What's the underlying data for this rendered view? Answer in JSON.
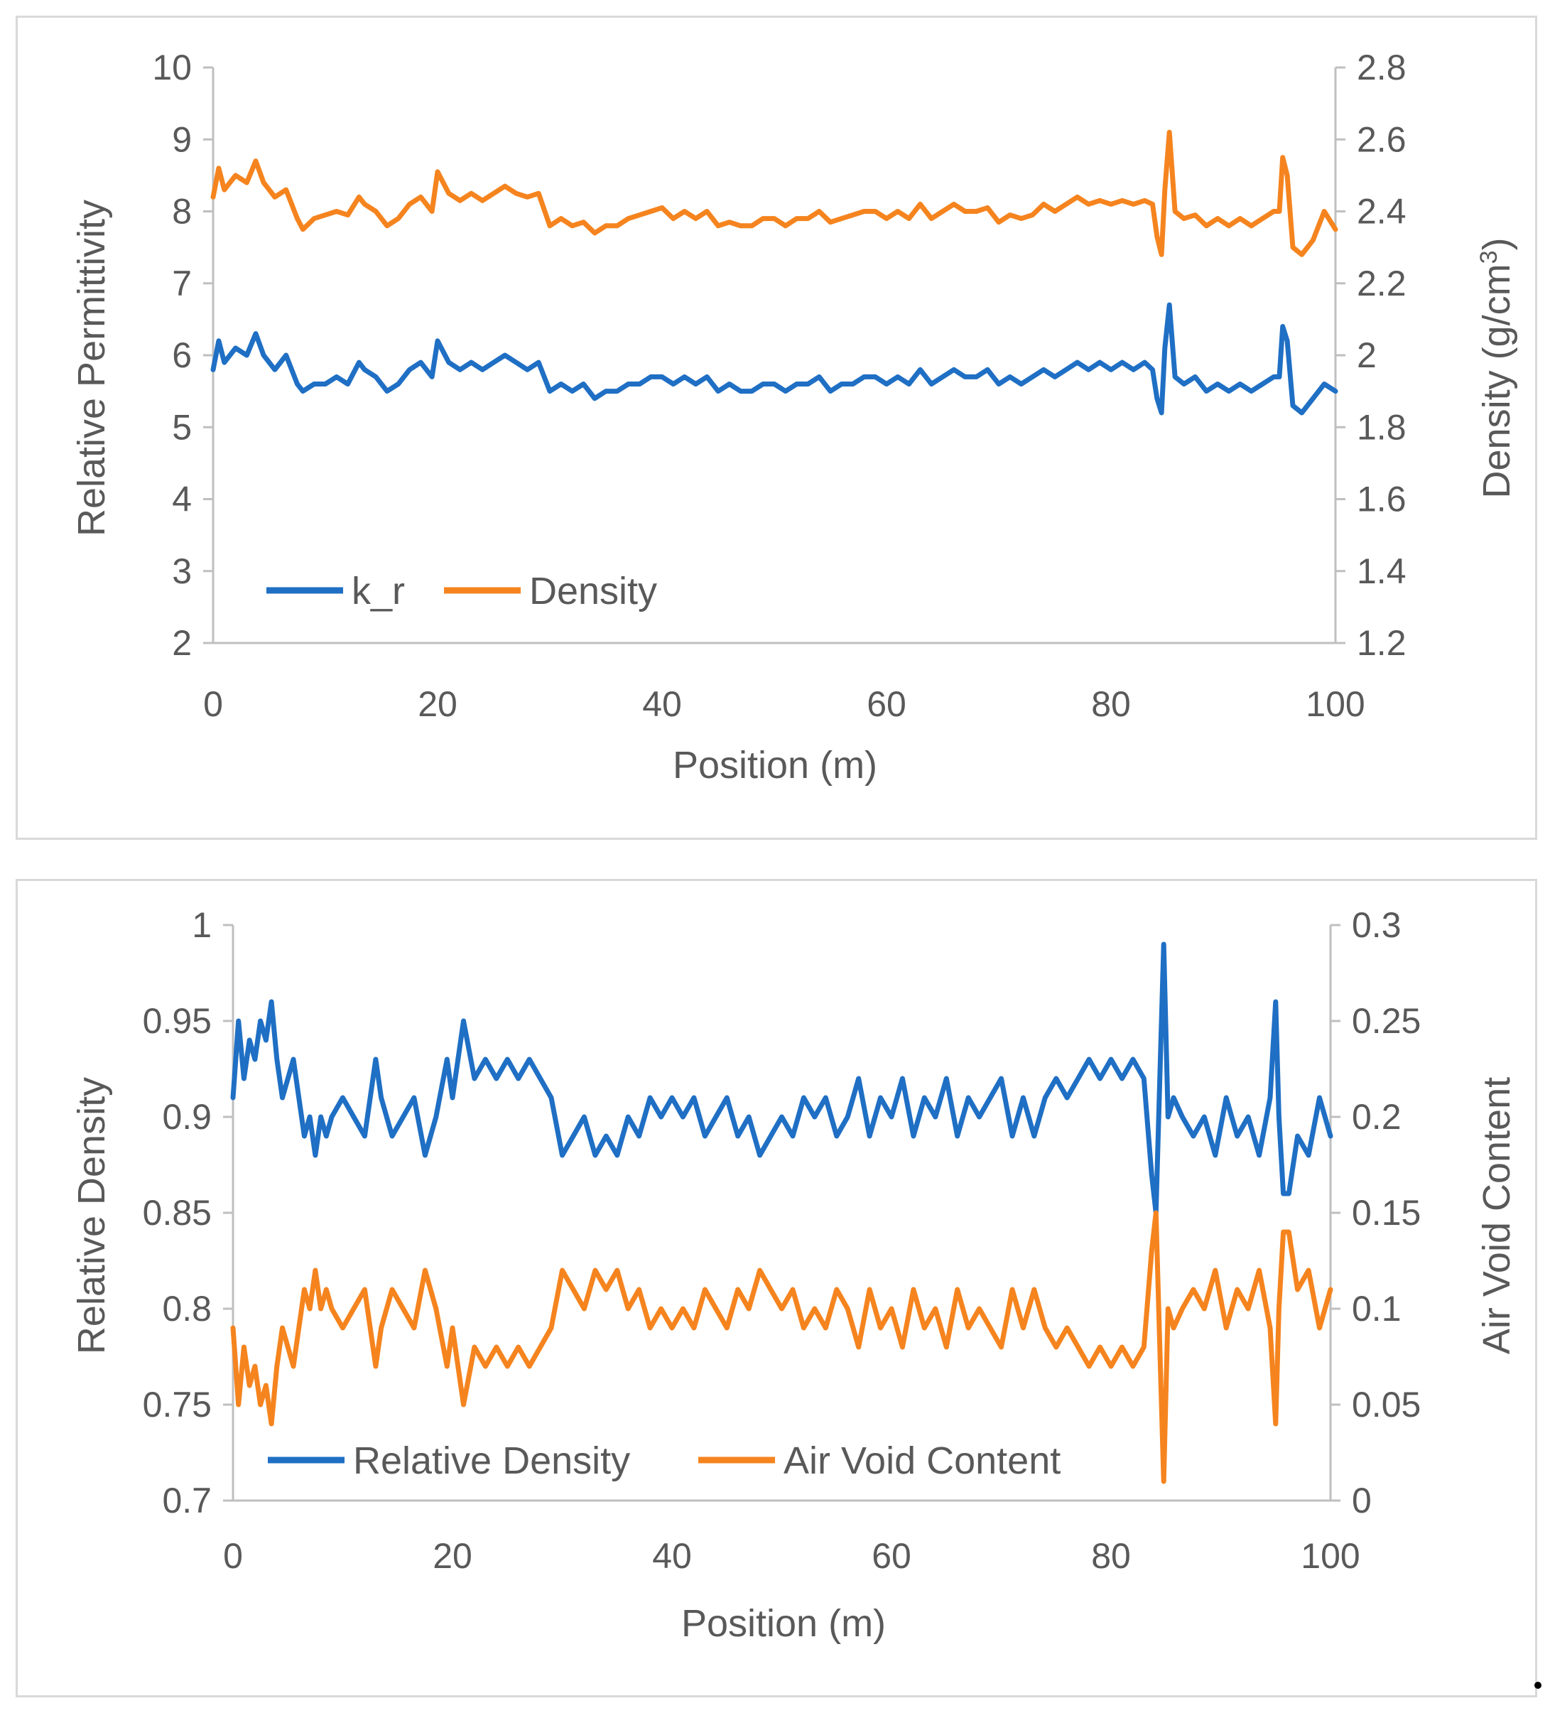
{
  "colors": {
    "series1": "#1f6fc4",
    "series2": "#f5841f",
    "axis": "#bfbfbf",
    "text": "#595959"
  },
  "chart_data": [
    {
      "type": "line",
      "xlabel": "Position (m)",
      "ylabel": "Relative Permittivity",
      "y2label": "Density (g/cm",
      "y2label_sup": "3",
      "y2label_close": ")",
      "xlim": [
        0,
        100
      ],
      "ylim": [
        2,
        10
      ],
      "y2lim": [
        1.2,
        2.8
      ],
      "xticks": [
        "0",
        "20",
        "40",
        "60",
        "80",
        "100"
      ],
      "yticks": [
        "2",
        "3",
        "4",
        "5",
        "6",
        "7",
        "8",
        "9",
        "10"
      ],
      "y2ticks": [
        "1.2",
        "1.4",
        "1.6",
        "1.8",
        "2",
        "2.2",
        "2.4",
        "2.6",
        "2.8"
      ],
      "legend_position": "lower-left",
      "series": [
        {
          "name": "k_r",
          "axis": "left",
          "color": "#1f6fc4",
          "x": [
            0,
            0.5,
            1,
            2,
            3,
            3.8,
            4.5,
            5.5,
            6.5,
            7.5,
            8,
            9,
            10,
            11,
            12,
            13,
            13.5,
            14.5,
            15.5,
            16.5,
            17.5,
            18.5,
            19.5,
            20,
            21,
            22,
            23,
            24,
            25,
            26,
            27,
            28,
            29,
            30,
            31,
            32,
            33,
            34,
            35,
            36,
            37,
            38,
            39,
            40,
            41,
            42,
            43,
            44,
            45,
            46,
            47,
            48,
            49,
            50,
            51,
            52,
            53,
            54,
            55,
            56,
            57,
            58,
            59,
            60,
            61,
            62,
            63,
            64,
            65,
            66,
            67,
            68,
            69,
            70,
            71,
            72,
            73,
            74,
            75,
            76,
            77,
            78,
            79,
            80,
            81,
            82,
            83,
            83.7,
            84.1,
            84.5,
            84.8,
            85.2,
            85.7,
            86.5,
            87.5,
            88.5,
            89.5,
            90.5,
            91.5,
            92.5,
            93.5,
            94.5,
            95,
            95.3,
            95.7,
            96.2,
            97,
            98,
            99,
            100
          ],
          "values": [
            5.8,
            6.2,
            5.9,
            6.1,
            6.0,
            6.3,
            6.0,
            5.8,
            6.0,
            5.6,
            5.5,
            5.6,
            5.6,
            5.7,
            5.6,
            5.9,
            5.8,
            5.7,
            5.5,
            5.6,
            5.8,
            5.9,
            5.7,
            6.2,
            5.9,
            5.8,
            5.9,
            5.8,
            5.9,
            6.0,
            5.9,
            5.8,
            5.9,
            5.5,
            5.6,
            5.5,
            5.6,
            5.4,
            5.5,
            5.5,
            5.6,
            5.6,
            5.7,
            5.7,
            5.6,
            5.7,
            5.6,
            5.7,
            5.5,
            5.6,
            5.5,
            5.5,
            5.6,
            5.6,
            5.5,
            5.6,
            5.6,
            5.7,
            5.5,
            5.6,
            5.6,
            5.7,
            5.7,
            5.6,
            5.7,
            5.6,
            5.8,
            5.6,
            5.7,
            5.8,
            5.7,
            5.7,
            5.8,
            5.6,
            5.7,
            5.6,
            5.7,
            5.8,
            5.7,
            5.8,
            5.9,
            5.8,
            5.9,
            5.8,
            5.9,
            5.8,
            5.9,
            5.8,
            5.4,
            5.2,
            6.1,
            6.7,
            5.7,
            5.6,
            5.7,
            5.5,
            5.6,
            5.5,
            5.6,
            5.5,
            5.6,
            5.7,
            5.7,
            6.4,
            6.2,
            5.3,
            5.2,
            5.4,
            5.6,
            5.5
          ]
        },
        {
          "name": "Density",
          "axis": "right",
          "color": "#f5841f",
          "x": [
            0,
            0.5,
            1,
            2,
            3,
            3.8,
            4.5,
            5.5,
            6.5,
            7.5,
            8,
            9,
            10,
            11,
            12,
            13,
            13.5,
            14.5,
            15.5,
            16.5,
            17.5,
            18.5,
            19.5,
            20,
            21,
            22,
            23,
            24,
            25,
            26,
            27,
            28,
            29,
            30,
            31,
            32,
            33,
            34,
            35,
            36,
            37,
            38,
            39,
            40,
            41,
            42,
            43,
            44,
            45,
            46,
            47,
            48,
            49,
            50,
            51,
            52,
            53,
            54,
            55,
            56,
            57,
            58,
            59,
            60,
            61,
            62,
            63,
            64,
            65,
            66,
            67,
            68,
            69,
            70,
            71,
            72,
            73,
            74,
            75,
            76,
            77,
            78,
            79,
            80,
            81,
            82,
            83,
            83.7,
            84.1,
            84.5,
            84.8,
            85.2,
            85.7,
            86.5,
            87.5,
            88.5,
            89.5,
            90.5,
            91.5,
            92.5,
            93.5,
            94.5,
            95,
            95.3,
            95.7,
            96.2,
            97,
            98,
            99,
            100
          ],
          "values": [
            2.44,
            2.52,
            2.46,
            2.5,
            2.48,
            2.54,
            2.48,
            2.44,
            2.46,
            2.38,
            2.35,
            2.38,
            2.39,
            2.4,
            2.39,
            2.44,
            2.42,
            2.4,
            2.36,
            2.38,
            2.42,
            2.44,
            2.4,
            2.51,
            2.45,
            2.43,
            2.45,
            2.43,
            2.45,
            2.47,
            2.45,
            2.44,
            2.45,
            2.36,
            2.38,
            2.36,
            2.37,
            2.34,
            2.36,
            2.36,
            2.38,
            2.39,
            2.4,
            2.41,
            2.38,
            2.4,
            2.38,
            2.4,
            2.36,
            2.37,
            2.36,
            2.36,
            2.38,
            2.38,
            2.36,
            2.38,
            2.38,
            2.4,
            2.37,
            2.38,
            2.39,
            2.4,
            2.4,
            2.38,
            2.4,
            2.38,
            2.42,
            2.38,
            2.4,
            2.42,
            2.4,
            2.4,
            2.41,
            2.37,
            2.39,
            2.38,
            2.39,
            2.42,
            2.4,
            2.42,
            2.44,
            2.42,
            2.43,
            2.42,
            2.43,
            2.42,
            2.43,
            2.42,
            2.33,
            2.28,
            2.46,
            2.62,
            2.4,
            2.38,
            2.39,
            2.36,
            2.38,
            2.36,
            2.38,
            2.36,
            2.38,
            2.4,
            2.4,
            2.55,
            2.5,
            2.3,
            2.28,
            2.32,
            2.4,
            2.35
          ]
        }
      ]
    },
    {
      "type": "line",
      "xlabel": "Position (m)",
      "ylabel": "Relative Density",
      "y2label": "Air Void Content",
      "xlim": [
        0,
        100
      ],
      "ylim": [
        0.7,
        1.0
      ],
      "y2lim": [
        0,
        0.3
      ],
      "xticks": [
        "0",
        "20",
        "40",
        "60",
        "80",
        "100"
      ],
      "yticks": [
        "0.7",
        "0.75",
        "0.8",
        "0.85",
        "0.9",
        "0.95",
        "1"
      ],
      "y2ticks": [
        "0",
        "0.05",
        "0.1",
        "0.15",
        "0.2",
        "0.25",
        "0.3"
      ],
      "legend_position": "lower-left",
      "series": [
        {
          "name": "Relative Density",
          "axis": "left",
          "color": "#1f6fc4",
          "x": [
            0,
            0.5,
            1,
            1.5,
            2,
            2.5,
            3,
            3.5,
            4,
            4.5,
            5,
            5.5,
            6,
            6.5,
            7,
            7.5,
            8,
            8.5,
            9,
            10,
            11,
            12,
            13,
            13.5,
            14.5,
            15.5,
            16.5,
            17.5,
            18.5,
            19.5,
            20,
            21,
            22,
            23,
            24,
            25,
            26,
            27,
            28,
            29,
            30,
            31,
            32,
            33,
            34,
            35,
            36,
            37,
            38,
            39,
            40,
            41,
            42,
            43,
            44,
            45,
            46,
            47,
            48,
            49,
            50,
            51,
            52,
            53,
            54,
            55,
            56,
            57,
            58,
            59,
            60,
            61,
            62,
            63,
            64,
            65,
            66,
            67,
            68,
            69,
            70,
            71,
            72,
            73,
            74,
            75,
            76,
            77,
            78,
            79,
            80,
            81,
            82,
            83,
            83.7,
            84.1,
            84.5,
            84.8,
            85.2,
            85.7,
            86.5,
            87.5,
            88.5,
            89.5,
            90.5,
            91.5,
            92.5,
            93.5,
            94.5,
            95,
            95.3,
            95.7,
            96.2,
            97,
            98,
            99,
            100
          ],
          "values": [
            0.91,
            0.95,
            0.92,
            0.94,
            0.93,
            0.95,
            0.94,
            0.96,
            0.93,
            0.91,
            0.92,
            0.93,
            0.91,
            0.89,
            0.9,
            0.88,
            0.9,
            0.89,
            0.9,
            0.91,
            0.9,
            0.89,
            0.93,
            0.91,
            0.89,
            0.9,
            0.91,
            0.88,
            0.9,
            0.93,
            0.91,
            0.95,
            0.92,
            0.93,
            0.92,
            0.93,
            0.92,
            0.93,
            0.92,
            0.91,
            0.88,
            0.89,
            0.9,
            0.88,
            0.89,
            0.88,
            0.9,
            0.89,
            0.91,
            0.9,
            0.91,
            0.9,
            0.91,
            0.89,
            0.9,
            0.91,
            0.89,
            0.9,
            0.88,
            0.89,
            0.9,
            0.89,
            0.91,
            0.9,
            0.91,
            0.89,
            0.9,
            0.92,
            0.89,
            0.91,
            0.9,
            0.92,
            0.89,
            0.91,
            0.9,
            0.92,
            0.89,
            0.91,
            0.9,
            0.91,
            0.92,
            0.89,
            0.91,
            0.89,
            0.91,
            0.92,
            0.91,
            0.92,
            0.93,
            0.92,
            0.93,
            0.92,
            0.93,
            0.92,
            0.87,
            0.85,
            0.93,
            0.99,
            0.9,
            0.91,
            0.9,
            0.89,
            0.9,
            0.88,
            0.91,
            0.89,
            0.9,
            0.88,
            0.91,
            0.96,
            0.9,
            0.86,
            0.86,
            0.89,
            0.88,
            0.91,
            0.89
          ]
        },
        {
          "name": "Air Void Content",
          "axis": "right",
          "color": "#f5841f",
          "x": [
            0,
            0.5,
            1,
            1.5,
            2,
            2.5,
            3,
            3.5,
            4,
            4.5,
            5,
            5.5,
            6,
            6.5,
            7,
            7.5,
            8,
            8.5,
            9,
            10,
            11,
            12,
            13,
            13.5,
            14.5,
            15.5,
            16.5,
            17.5,
            18.5,
            19.5,
            20,
            21,
            22,
            23,
            24,
            25,
            26,
            27,
            28,
            29,
            30,
            31,
            32,
            33,
            34,
            35,
            36,
            37,
            38,
            39,
            40,
            41,
            42,
            43,
            44,
            45,
            46,
            47,
            48,
            49,
            50,
            51,
            52,
            53,
            54,
            55,
            56,
            57,
            58,
            59,
            60,
            61,
            62,
            63,
            64,
            65,
            66,
            67,
            68,
            69,
            70,
            71,
            72,
            73,
            74,
            75,
            76,
            77,
            78,
            79,
            80,
            81,
            82,
            83,
            83.7,
            84.1,
            84.5,
            84.8,
            85.2,
            85.7,
            86.5,
            87.5,
            88.5,
            89.5,
            90.5,
            91.5,
            92.5,
            93.5,
            94.5,
            95,
            95.3,
            95.7,
            96.2,
            97,
            98,
            99,
            100
          ],
          "values": [
            0.09,
            0.05,
            0.08,
            0.06,
            0.07,
            0.05,
            0.06,
            0.04,
            0.07,
            0.09,
            0.08,
            0.07,
            0.09,
            0.11,
            0.1,
            0.12,
            0.1,
            0.11,
            0.1,
            0.09,
            0.1,
            0.11,
            0.07,
            0.09,
            0.11,
            0.1,
            0.09,
            0.12,
            0.1,
            0.07,
            0.09,
            0.05,
            0.08,
            0.07,
            0.08,
            0.07,
            0.08,
            0.07,
            0.08,
            0.09,
            0.12,
            0.11,
            0.1,
            0.12,
            0.11,
            0.12,
            0.1,
            0.11,
            0.09,
            0.1,
            0.09,
            0.1,
            0.09,
            0.11,
            0.1,
            0.09,
            0.11,
            0.1,
            0.12,
            0.11,
            0.1,
            0.11,
            0.09,
            0.1,
            0.09,
            0.11,
            0.1,
            0.08,
            0.11,
            0.09,
            0.1,
            0.08,
            0.11,
            0.09,
            0.1,
            0.08,
            0.11,
            0.09,
            0.1,
            0.09,
            0.08,
            0.11,
            0.09,
            0.11,
            0.09,
            0.08,
            0.09,
            0.08,
            0.07,
            0.08,
            0.07,
            0.08,
            0.07,
            0.08,
            0.13,
            0.15,
            0.07,
            0.01,
            0.1,
            0.09,
            0.1,
            0.11,
            0.1,
            0.12,
            0.09,
            0.11,
            0.1,
            0.12,
            0.09,
            0.04,
            0.1,
            0.14,
            0.14,
            0.11,
            0.12,
            0.09,
            0.11
          ]
        }
      ]
    }
  ]
}
